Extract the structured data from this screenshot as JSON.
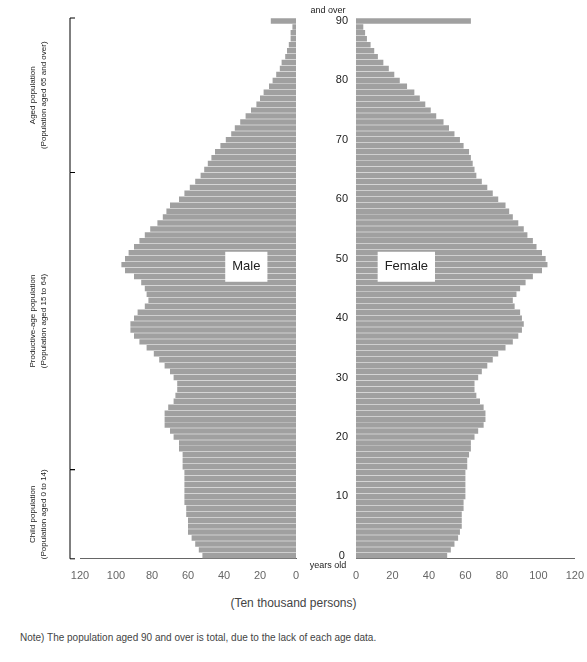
{
  "chart_data": {
    "type": "bar",
    "orientation": "horizontal",
    "grid": false,
    "xlabel": "(Ten thousand persons)",
    "note": "Note)  The population aged 90 and over is total, due to the lack of each age data.",
    "top_label": "and over",
    "bottom_label": "years old",
    "categories": [
      "0",
      null,
      null,
      null,
      null,
      null,
      null,
      null,
      null,
      null,
      "10",
      null,
      null,
      null,
      null,
      null,
      null,
      null,
      null,
      null,
      "20",
      null,
      null,
      null,
      null,
      null,
      null,
      null,
      null,
      null,
      "30",
      null,
      null,
      null,
      null,
      null,
      null,
      null,
      null,
      null,
      "40",
      null,
      null,
      null,
      null,
      null,
      null,
      null,
      null,
      null,
      "50",
      null,
      null,
      null,
      null,
      null,
      null,
      null,
      null,
      null,
      "60",
      null,
      null,
      null,
      null,
      null,
      null,
      null,
      null,
      null,
      "70",
      null,
      null,
      null,
      null,
      null,
      null,
      null,
      null,
      null,
      "80",
      null,
      null,
      null,
      null,
      null,
      null,
      null,
      null,
      null,
      "90"
    ],
    "series": [
      {
        "name": "Male",
        "color": "#a0a0a0",
        "values": [
          52,
          54,
          56,
          58,
          60,
          60,
          60,
          61,
          61,
          62,
          62,
          62,
          62,
          62,
          62,
          63,
          63,
          63,
          65,
          65,
          68,
          70,
          73,
          73,
          73,
          71,
          68,
          67,
          66,
          66,
          68,
          70,
          73,
          76,
          79,
          83,
          87,
          90,
          92,
          92,
          90,
          88,
          84,
          82,
          83,
          84,
          86,
          90,
          95,
          97,
          95,
          93,
          90,
          87,
          84,
          81,
          77,
          74,
          72,
          70,
          65,
          62,
          59,
          56,
          53,
          51,
          49,
          47,
          45,
          42,
          39,
          36,
          34,
          31,
          28,
          25,
          22,
          20,
          18,
          15,
          13,
          11,
          9,
          8,
          6,
          5,
          4,
          3,
          3,
          2,
          14
        ]
      },
      {
        "name": "Female",
        "color": "#a0a0a0",
        "values": [
          50,
          52,
          54,
          56,
          57,
          58,
          58,
          58,
          59,
          59,
          60,
          60,
          60,
          60,
          60,
          61,
          61,
          62,
          63,
          63,
          65,
          67,
          70,
          71,
          71,
          70,
          68,
          66,
          65,
          65,
          67,
          69,
          72,
          75,
          78,
          82,
          86,
          89,
          91,
          92,
          91,
          90,
          87,
          86,
          88,
          90,
          93,
          97,
          102,
          105,
          104,
          102,
          99,
          97,
          94,
          92,
          89,
          86,
          84,
          82,
          78,
          75,
          72,
          69,
          66,
          65,
          64,
          63,
          62,
          59,
          57,
          54,
          51,
          48,
          44,
          41,
          38,
          35,
          32,
          28,
          24,
          21,
          18,
          15,
          12,
          10,
          8,
          6,
          5,
          4,
          63
        ]
      }
    ],
    "xlim": [
      0,
      120
    ],
    "xticks": [
      0,
      20,
      40,
      60,
      80,
      100,
      120
    ],
    "groups": [
      {
        "label": [
          "Child population",
          "(Population aged 0 to 14)"
        ],
        "from": 0,
        "to": 14
      },
      {
        "label": [
          "Productive-age population",
          "(Population aged 15 to 64)"
        ],
        "from": 15,
        "to": 64
      },
      {
        "label": [
          "Aged population",
          "(Population aged 65 and over)"
        ],
        "from": 65,
        "to": 90
      }
    ]
  }
}
